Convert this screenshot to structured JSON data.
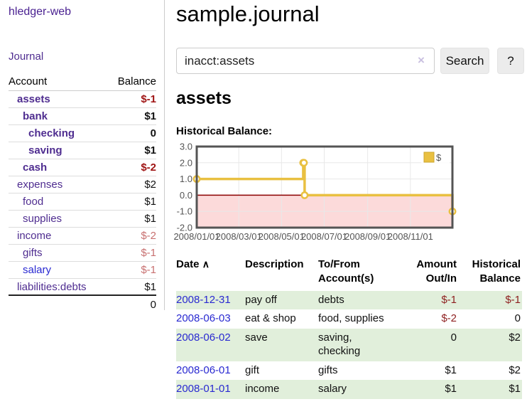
{
  "app": {
    "brand": "hledger-web"
  },
  "sidebar": {
    "journal_label": "Journal",
    "accounts": {
      "headers": {
        "account": "Account",
        "balance": "Balance"
      },
      "rows": [
        {
          "name": "assets",
          "balance": "$-1",
          "depth": 1,
          "bold": true,
          "balance_style": "neg-strong",
          "link_color": "purple"
        },
        {
          "name": "bank",
          "balance": "$1",
          "depth": 2,
          "bold": true,
          "balance_style": "pos",
          "link_color": "purple"
        },
        {
          "name": "checking",
          "balance": "0",
          "depth": 3,
          "bold": true,
          "balance_style": "pos",
          "link_color": "purple"
        },
        {
          "name": "saving",
          "balance": "$1",
          "depth": 3,
          "bold": true,
          "balance_style": "pos",
          "link_color": "purple"
        },
        {
          "name": "cash",
          "balance": "$-2",
          "depth": 2,
          "bold": true,
          "balance_style": "neg-strong",
          "link_color": "purple"
        },
        {
          "name": "expenses",
          "balance": "$2",
          "depth": 1,
          "bold": false,
          "balance_style": "pos",
          "link_color": "purple"
        },
        {
          "name": "food",
          "balance": "$1",
          "depth": 2,
          "bold": false,
          "balance_style": "pos",
          "link_color": "purple"
        },
        {
          "name": "supplies",
          "balance": "$1",
          "depth": 2,
          "bold": false,
          "balance_style": "pos",
          "link_color": "purple"
        },
        {
          "name": "income",
          "balance": "$-2",
          "depth": 1,
          "bold": false,
          "balance_style": "neg-soft",
          "link_color": "purple"
        },
        {
          "name": "gifts",
          "balance": "$-1",
          "depth": 2,
          "bold": false,
          "balance_style": "neg-soft",
          "link_color": "purple"
        },
        {
          "name": "salary",
          "balance": "$-1",
          "depth": 2,
          "bold": false,
          "balance_style": "neg-soft",
          "link_color": "blue"
        },
        {
          "name": "liabilities:debts",
          "balance": "$1",
          "depth": 1,
          "bold": false,
          "balance_style": "pos",
          "link_color": "purple"
        }
      ],
      "total": "0"
    }
  },
  "main": {
    "title": "sample.journal",
    "search": {
      "value": "inacct:assets",
      "clear_icon": "×",
      "button_label": "Search",
      "help_label": "?"
    },
    "account_heading": "assets",
    "chart_label": "Historical Balance:"
  },
  "register": {
    "headers": {
      "date": "Date",
      "date_sort_icon": "∧",
      "description": "Description",
      "accounts": "To/From Account(s)",
      "amount": "Amount Out/In",
      "balance": "Historical Balance"
    },
    "rows": [
      {
        "date": "2008-12-31",
        "description": "pay off",
        "accounts": "debts",
        "amount": "$-1",
        "amount_neg": true,
        "balance": "$-1",
        "balance_neg": true,
        "green": true
      },
      {
        "date": "2008-06-03",
        "description": "eat & shop",
        "accounts": "food, supplies",
        "amount": "$-2",
        "amount_neg": true,
        "balance": "0",
        "balance_neg": false,
        "green": false
      },
      {
        "date": "2008-06-02",
        "description": "save",
        "accounts": "saving, checking",
        "amount": "0",
        "amount_neg": false,
        "balance": "$2",
        "balance_neg": false,
        "green": true
      },
      {
        "date": "2008-06-01",
        "description": "gift",
        "accounts": "gifts",
        "amount": "$1",
        "amount_neg": false,
        "balance": "$2",
        "balance_neg": false,
        "green": false
      },
      {
        "date": "2008-01-01",
        "description": "income",
        "accounts": "salary",
        "amount": "$1",
        "amount_neg": false,
        "balance": "$1",
        "balance_neg": false,
        "green": true
      }
    ]
  },
  "chart_data": {
    "type": "line",
    "step": true,
    "title": "Historical Balance:",
    "series": [
      {
        "name": "$",
        "color": "#e9c041",
        "points": [
          [
            "2008-01-01",
            1
          ],
          [
            "2008-06-01",
            2
          ],
          [
            "2008-06-02",
            2
          ],
          [
            "2008-06-03",
            0
          ],
          [
            "2008-12-31",
            -1
          ]
        ]
      }
    ],
    "x_start": "2008-01-01",
    "x_ticks": [
      "2008/01/01",
      "2008/03/01",
      "2008/05/01",
      "2008/07/01",
      "2008/09/01",
      "2008/11/01"
    ],
    "y_ticks": [
      3.0,
      2.0,
      1.0,
      0.0,
      -1.0,
      -2.0
    ],
    "ylim": [
      -2,
      3
    ],
    "grid": true,
    "negative_fill": "#fcdada",
    "zero_line_color": "#8b0000",
    "axis_text_color": "#545454",
    "legend": {
      "label": "$",
      "position": "top-right"
    }
  }
}
